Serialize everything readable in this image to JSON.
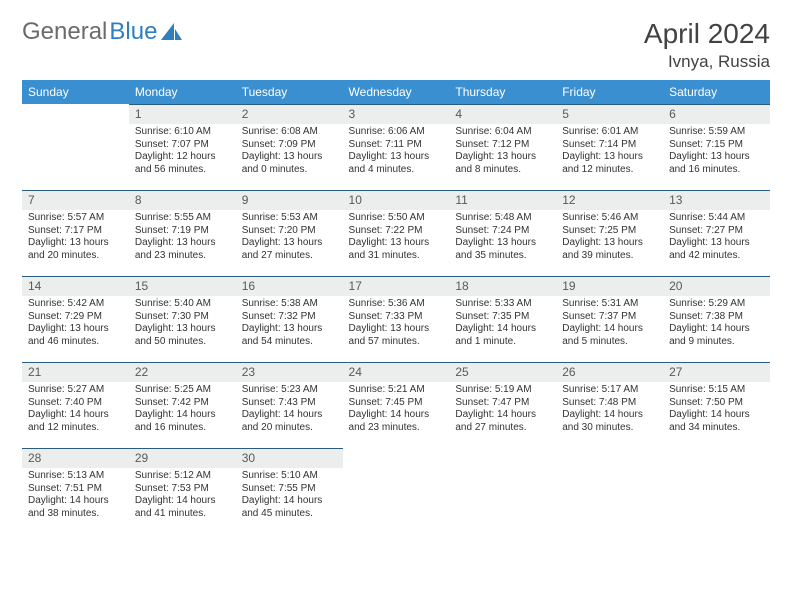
{
  "logo": {
    "text_a": "General",
    "text_b": "Blue",
    "icon_color": "#2f7fbf"
  },
  "title": "April 2024",
  "location": "Ivnya, Russia",
  "colors": {
    "header_bg": "#3a8fd0",
    "header_text": "#ffffff",
    "daynum_bg": "#eceded",
    "daynum_text": "#595959",
    "daynum_border": "#2a5c82",
    "body_text": "#333333"
  },
  "weekdays": [
    "Sunday",
    "Monday",
    "Tuesday",
    "Wednesday",
    "Thursday",
    "Friday",
    "Saturday"
  ],
  "weeks": [
    [
      null,
      {
        "n": "1",
        "sr": "Sunrise: 6:10 AM",
        "ss": "Sunset: 7:07 PM",
        "d1": "Daylight: 12 hours",
        "d2": "and 56 minutes."
      },
      {
        "n": "2",
        "sr": "Sunrise: 6:08 AM",
        "ss": "Sunset: 7:09 PM",
        "d1": "Daylight: 13 hours",
        "d2": "and 0 minutes."
      },
      {
        "n": "3",
        "sr": "Sunrise: 6:06 AM",
        "ss": "Sunset: 7:11 PM",
        "d1": "Daylight: 13 hours",
        "d2": "and 4 minutes."
      },
      {
        "n": "4",
        "sr": "Sunrise: 6:04 AM",
        "ss": "Sunset: 7:12 PM",
        "d1": "Daylight: 13 hours",
        "d2": "and 8 minutes."
      },
      {
        "n": "5",
        "sr": "Sunrise: 6:01 AM",
        "ss": "Sunset: 7:14 PM",
        "d1": "Daylight: 13 hours",
        "d2": "and 12 minutes."
      },
      {
        "n": "6",
        "sr": "Sunrise: 5:59 AM",
        "ss": "Sunset: 7:15 PM",
        "d1": "Daylight: 13 hours",
        "d2": "and 16 minutes."
      }
    ],
    [
      {
        "n": "7",
        "sr": "Sunrise: 5:57 AM",
        "ss": "Sunset: 7:17 PM",
        "d1": "Daylight: 13 hours",
        "d2": "and 20 minutes."
      },
      {
        "n": "8",
        "sr": "Sunrise: 5:55 AM",
        "ss": "Sunset: 7:19 PM",
        "d1": "Daylight: 13 hours",
        "d2": "and 23 minutes."
      },
      {
        "n": "9",
        "sr": "Sunrise: 5:53 AM",
        "ss": "Sunset: 7:20 PM",
        "d1": "Daylight: 13 hours",
        "d2": "and 27 minutes."
      },
      {
        "n": "10",
        "sr": "Sunrise: 5:50 AM",
        "ss": "Sunset: 7:22 PM",
        "d1": "Daylight: 13 hours",
        "d2": "and 31 minutes."
      },
      {
        "n": "11",
        "sr": "Sunrise: 5:48 AM",
        "ss": "Sunset: 7:24 PM",
        "d1": "Daylight: 13 hours",
        "d2": "and 35 minutes."
      },
      {
        "n": "12",
        "sr": "Sunrise: 5:46 AM",
        "ss": "Sunset: 7:25 PM",
        "d1": "Daylight: 13 hours",
        "d2": "and 39 minutes."
      },
      {
        "n": "13",
        "sr": "Sunrise: 5:44 AM",
        "ss": "Sunset: 7:27 PM",
        "d1": "Daylight: 13 hours",
        "d2": "and 42 minutes."
      }
    ],
    [
      {
        "n": "14",
        "sr": "Sunrise: 5:42 AM",
        "ss": "Sunset: 7:29 PM",
        "d1": "Daylight: 13 hours",
        "d2": "and 46 minutes."
      },
      {
        "n": "15",
        "sr": "Sunrise: 5:40 AM",
        "ss": "Sunset: 7:30 PM",
        "d1": "Daylight: 13 hours",
        "d2": "and 50 minutes."
      },
      {
        "n": "16",
        "sr": "Sunrise: 5:38 AM",
        "ss": "Sunset: 7:32 PM",
        "d1": "Daylight: 13 hours",
        "d2": "and 54 minutes."
      },
      {
        "n": "17",
        "sr": "Sunrise: 5:36 AM",
        "ss": "Sunset: 7:33 PM",
        "d1": "Daylight: 13 hours",
        "d2": "and 57 minutes."
      },
      {
        "n": "18",
        "sr": "Sunrise: 5:33 AM",
        "ss": "Sunset: 7:35 PM",
        "d1": "Daylight: 14 hours",
        "d2": "and 1 minute."
      },
      {
        "n": "19",
        "sr": "Sunrise: 5:31 AM",
        "ss": "Sunset: 7:37 PM",
        "d1": "Daylight: 14 hours",
        "d2": "and 5 minutes."
      },
      {
        "n": "20",
        "sr": "Sunrise: 5:29 AM",
        "ss": "Sunset: 7:38 PM",
        "d1": "Daylight: 14 hours",
        "d2": "and 9 minutes."
      }
    ],
    [
      {
        "n": "21",
        "sr": "Sunrise: 5:27 AM",
        "ss": "Sunset: 7:40 PM",
        "d1": "Daylight: 14 hours",
        "d2": "and 12 minutes."
      },
      {
        "n": "22",
        "sr": "Sunrise: 5:25 AM",
        "ss": "Sunset: 7:42 PM",
        "d1": "Daylight: 14 hours",
        "d2": "and 16 minutes."
      },
      {
        "n": "23",
        "sr": "Sunrise: 5:23 AM",
        "ss": "Sunset: 7:43 PM",
        "d1": "Daylight: 14 hours",
        "d2": "and 20 minutes."
      },
      {
        "n": "24",
        "sr": "Sunrise: 5:21 AM",
        "ss": "Sunset: 7:45 PM",
        "d1": "Daylight: 14 hours",
        "d2": "and 23 minutes."
      },
      {
        "n": "25",
        "sr": "Sunrise: 5:19 AM",
        "ss": "Sunset: 7:47 PM",
        "d1": "Daylight: 14 hours",
        "d2": "and 27 minutes."
      },
      {
        "n": "26",
        "sr": "Sunrise: 5:17 AM",
        "ss": "Sunset: 7:48 PM",
        "d1": "Daylight: 14 hours",
        "d2": "and 30 minutes."
      },
      {
        "n": "27",
        "sr": "Sunrise: 5:15 AM",
        "ss": "Sunset: 7:50 PM",
        "d1": "Daylight: 14 hours",
        "d2": "and 34 minutes."
      }
    ],
    [
      {
        "n": "28",
        "sr": "Sunrise: 5:13 AM",
        "ss": "Sunset: 7:51 PM",
        "d1": "Daylight: 14 hours",
        "d2": "and 38 minutes."
      },
      {
        "n": "29",
        "sr": "Sunrise: 5:12 AM",
        "ss": "Sunset: 7:53 PM",
        "d1": "Daylight: 14 hours",
        "d2": "and 41 minutes."
      },
      {
        "n": "30",
        "sr": "Sunrise: 5:10 AM",
        "ss": "Sunset: 7:55 PM",
        "d1": "Daylight: 14 hours",
        "d2": "and 45 minutes."
      },
      null,
      null,
      null,
      null
    ]
  ]
}
